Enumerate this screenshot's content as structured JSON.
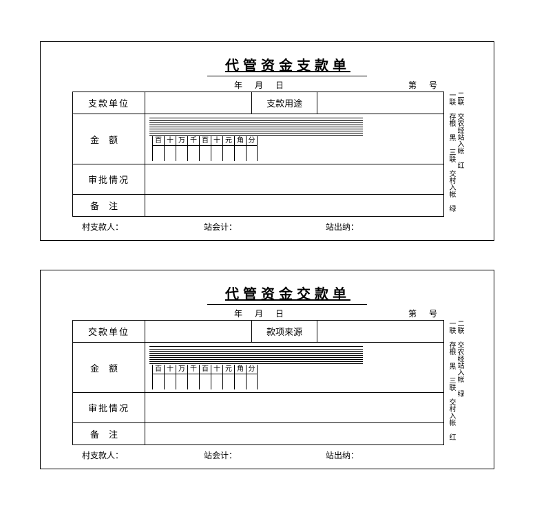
{
  "receipts": [
    {
      "title": "代管资金支款单",
      "date_y": "年",
      "date_m": "月",
      "date_d": "日",
      "number_prefix": "第",
      "number_suffix": "号",
      "row1_label": "支款单位",
      "row1_mid_label": "支款用途",
      "amount_label": "金额",
      "approval_label": "审批情况",
      "remark_label": "备注",
      "digit_headers": [
        "百",
        "十",
        "万",
        "千",
        "百",
        "十",
        "元",
        "角",
        "分"
      ],
      "side_col1": "二联 交农经站入帐 红",
      "side_col2": "一联 存根 黑  三联 交村入帐 绿",
      "footer1": "村支款人：",
      "footer2": "站会计：",
      "footer3": "站出纳："
    },
    {
      "title": "代管资金交款单",
      "date_y": "年",
      "date_m": "月",
      "date_d": "日",
      "number_prefix": "第",
      "number_suffix": "号",
      "row1_label": "交款单位",
      "row1_mid_label": "款项来源",
      "amount_label": "金额",
      "approval_label": "审批情况",
      "remark_label": "备注",
      "digit_headers": [
        "百",
        "十",
        "万",
        "千",
        "百",
        "十",
        "元",
        "角",
        "分"
      ],
      "side_col1": "二联 交农经站入帐 绿",
      "side_col2": "一联 存根 黑  三联 交村入帐 红",
      "footer1": "村支款人：",
      "footer2": "站会计：",
      "footer3": "站出纳："
    }
  ],
  "colors": {
    "border": "#000000",
    "background": "#ffffff",
    "text": "#000000"
  }
}
